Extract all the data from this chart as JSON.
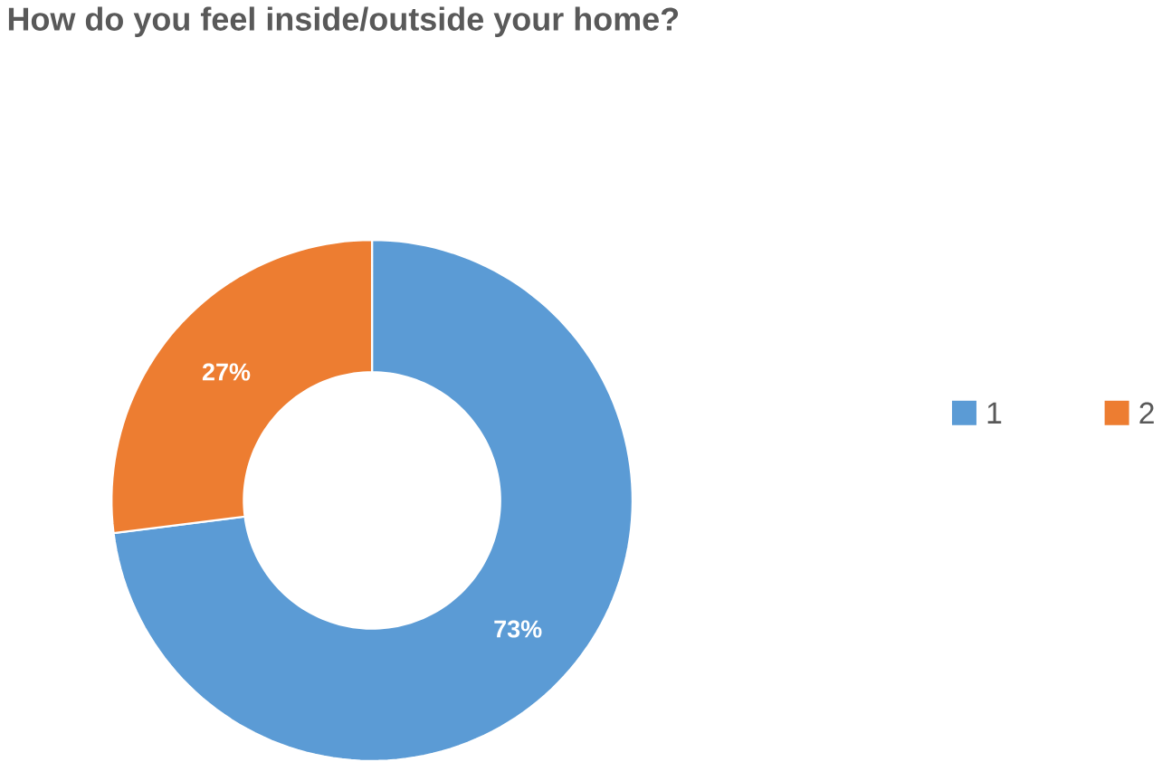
{
  "chart_data": {
    "type": "donut",
    "title": "How do you feel inside/outside your home?",
    "categories": [
      "1",
      "2"
    ],
    "values": [
      73,
      27
    ],
    "colors": [
      "#5b9bd5",
      "#ed7d31"
    ],
    "value_labels": [
      "73%",
      "27%"
    ],
    "legend": "right"
  }
}
